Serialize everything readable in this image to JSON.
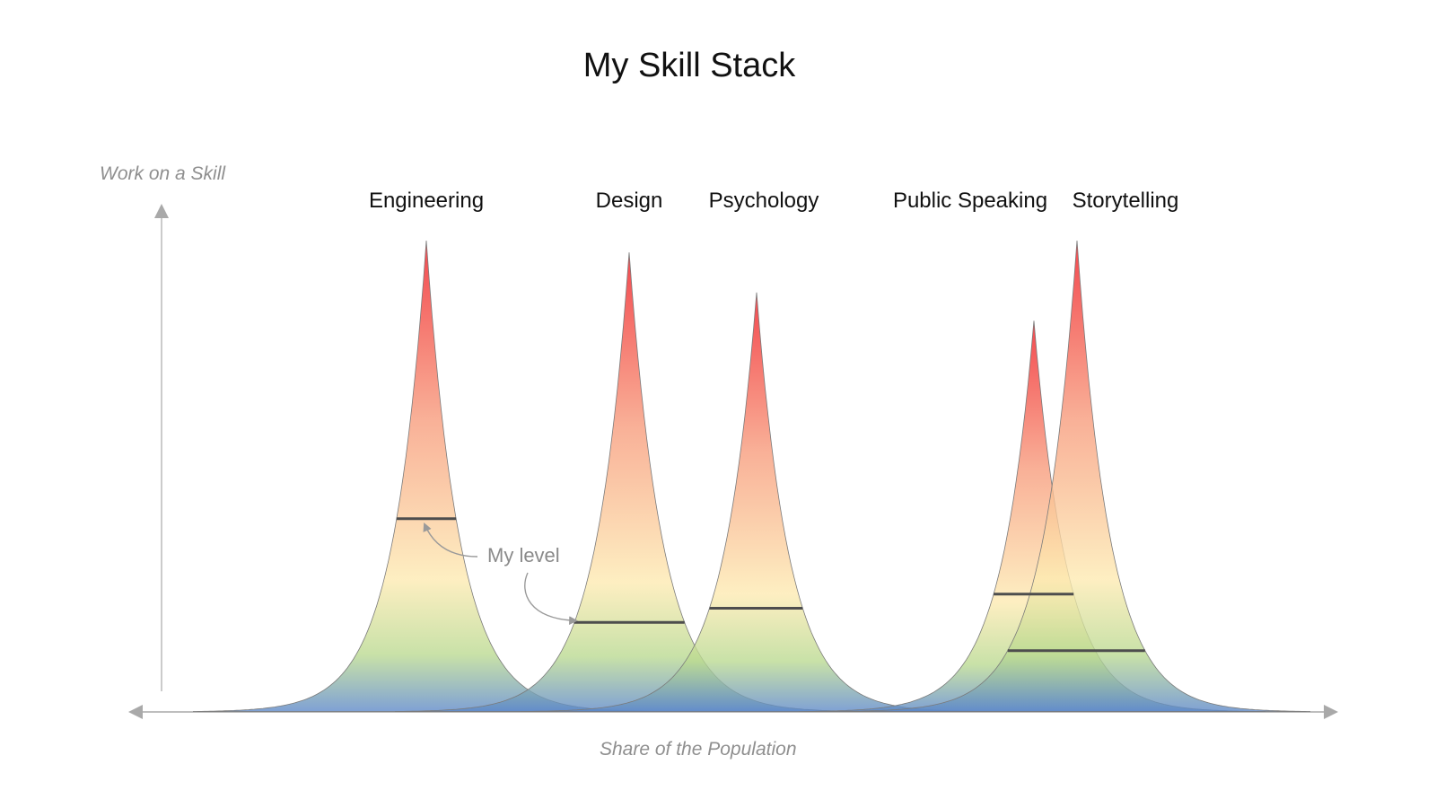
{
  "title": "My Skill Stack",
  "axes": {
    "y_label": "Work on a Skill",
    "x_label": "Share of the Population"
  },
  "annotation": {
    "label": "My level"
  },
  "colors": {
    "peak": "#f0141c",
    "upper": "#f79a7a",
    "middle": "#fdeab0",
    "lower": "#b9d98f",
    "base": "#5b87c8",
    "axis": "#a9a9a9",
    "marker": "#4d4d4d"
  },
  "skills": [
    {
      "name": "Engineering",
      "height": 1.0,
      "my_level": 0.41
    },
    {
      "name": "Design",
      "height": 0.975,
      "my_level": 0.19
    },
    {
      "name": "Psychology",
      "height": 0.89,
      "my_level": 0.22
    },
    {
      "name": "Public Speaking",
      "height": 0.83,
      "my_level": 0.25
    },
    {
      "name": "Storytelling",
      "height": 1.0,
      "my_level": 0.13
    }
  ]
}
